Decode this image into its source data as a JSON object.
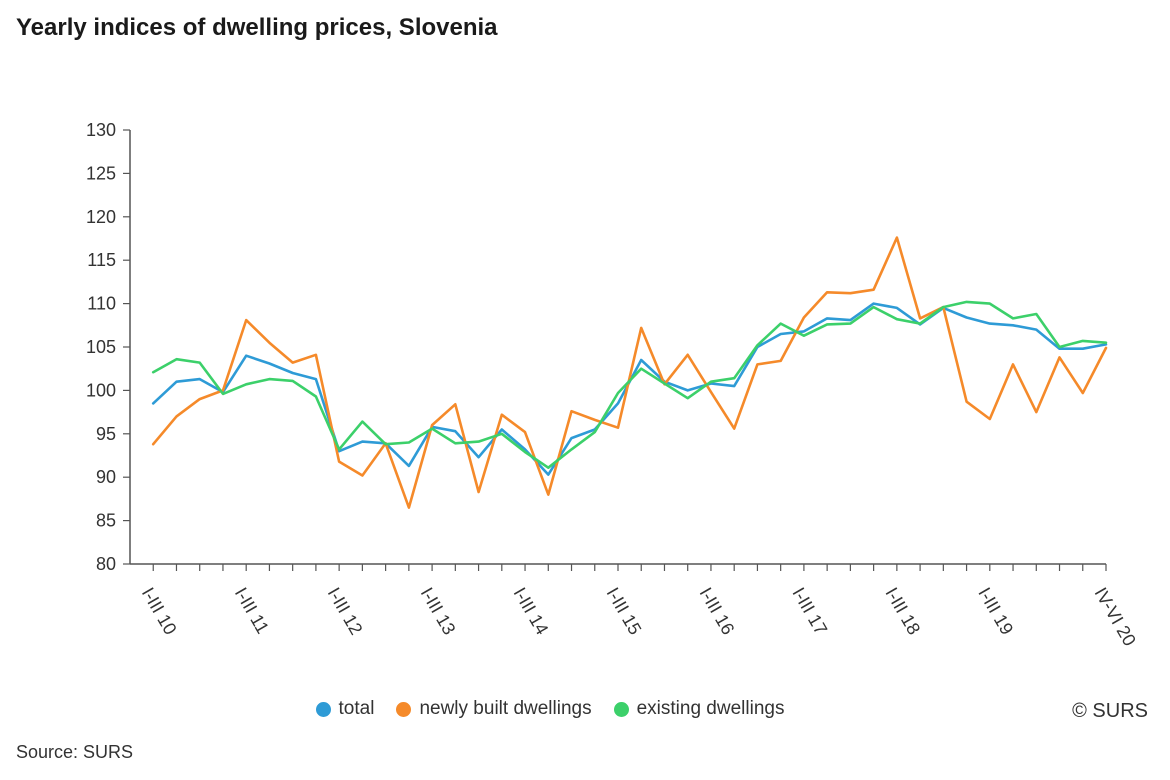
{
  "title": "Yearly indices of dwelling prices, Slovenia",
  "copyright": "© SURS",
  "source": "Source: SURS",
  "chart_data": {
    "type": "line",
    "ylim": [
      80,
      130
    ],
    "yticks": [
      80,
      85,
      90,
      95,
      100,
      105,
      110,
      115,
      120,
      125,
      130
    ],
    "categories": [
      "I-III 10",
      "IV-VI 10",
      "VII-IX 10",
      "X-XII 10",
      "I-III 11",
      "IV-VI 11",
      "VII-IX 11",
      "X-XII 11",
      "I-III 12",
      "IV-VI 12",
      "VII-IX 12",
      "X-XII 12",
      "I-III 13",
      "IV-VI 13",
      "VII-IX 13",
      "X-XII 13",
      "I-III 14",
      "IV-VI 14",
      "VII-IX 14",
      "X-XII 14",
      "I-III 15",
      "IV-VI 15",
      "VII-IX 15",
      "X-XII 15",
      "I-III 16",
      "IV-VI 16",
      "VII-IX 16",
      "X-XII 16",
      "I-III 17",
      "IV-VI 17",
      "VII-IX 17",
      "X-XII 17",
      "I-III 18",
      "IV-VI 18",
      "VII-IX 18",
      "X-XII 18",
      "I-III 19",
      "IV-VI 19",
      "VII-IX 19",
      "X-XII 19",
      "I-III 20",
      "IV-VI 20"
    ],
    "xtick_labels": [
      "I-III 10",
      "I-III 11",
      "I-III 12",
      "I-III 13",
      "I-III 14",
      "I-III 15",
      "I-III 16",
      "I-III 17",
      "I-III 18",
      "I-III 19",
      "IV-VI 20"
    ],
    "series": [
      {
        "name": "total",
        "color": "#2e9bd6",
        "values": [
          98.5,
          101.0,
          101.3,
          99.8,
          104.0,
          103.1,
          102.0,
          101.3,
          93.0,
          94.1,
          93.9,
          91.3,
          95.8,
          95.3,
          92.3,
          95.5,
          93.2,
          90.3,
          94.5,
          95.5,
          98.5,
          103.5,
          101.0,
          100.0,
          100.8,
          100.5,
          105.0,
          106.5,
          106.8,
          108.3,
          108.1,
          110.0,
          109.5,
          107.6,
          109.5,
          108.4,
          107.7,
          107.5,
          107.0,
          104.8,
          104.8,
          105.3
        ]
      },
      {
        "name": "newly built dwellings",
        "color": "#f58a2a",
        "values": [
          93.8,
          97.0,
          99.0,
          100.0,
          108.1,
          105.5,
          103.2,
          104.1,
          91.8,
          90.2,
          93.9,
          86.5,
          96.0,
          98.4,
          88.3,
          97.2,
          95.2,
          88.0,
          97.6,
          96.6,
          95.7,
          107.2,
          100.7,
          104.1,
          99.8,
          95.6,
          103.0,
          103.4,
          108.4,
          111.3,
          111.2,
          111.6,
          117.6,
          108.3,
          109.6,
          98.7,
          96.7,
          103.0,
          97.5,
          103.8,
          99.7,
          104.9
        ]
      },
      {
        "name": "existing dwellings",
        "color": "#3cd06a",
        "values": [
          102.1,
          103.6,
          103.2,
          99.6,
          100.7,
          101.3,
          101.1,
          99.3,
          93.2,
          96.4,
          93.8,
          94.0,
          95.6,
          93.9,
          94.1,
          95.0,
          92.9,
          91.1,
          93.2,
          95.2,
          99.7,
          102.5,
          100.8,
          99.1,
          101.0,
          101.4,
          105.2,
          107.7,
          106.3,
          107.6,
          107.7,
          109.6,
          108.2,
          107.7,
          109.6,
          110.2,
          110.0,
          108.3,
          108.8,
          105.0,
          105.7,
          105.5
        ]
      }
    ]
  }
}
